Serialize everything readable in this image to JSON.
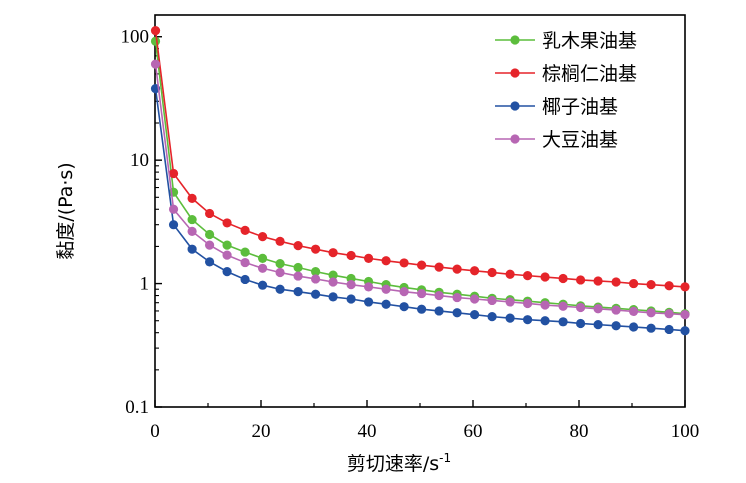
{
  "chart_data": {
    "type": "line",
    "xlabel": "剪切速率/s",
    "xlabel_sup": "-1",
    "ylabel": "黏度/(Pa·s)",
    "y_scale": "log",
    "xlim": [
      0,
      100
    ],
    "ylim": [
      0.1,
      150
    ],
    "x_ticks": [
      0,
      20,
      40,
      60,
      80,
      100
    ],
    "x_tick_labels": [
      "0",
      "20",
      "40",
      "60",
      "80",
      "100"
    ],
    "y_ticks": [
      0.1,
      1,
      10,
      100
    ],
    "y_tick_labels": [
      "0.1",
      "1",
      "10",
      "100"
    ],
    "grid": false,
    "legend_position": "top-right",
    "x": [
      0.1,
      3.5,
      7,
      10.3,
      13.6,
      17,
      20.3,
      23.6,
      27,
      30.3,
      33.6,
      37,
      40.3,
      43.6,
      47,
      50.3,
      53.6,
      57,
      60.3,
      63.6,
      67,
      70.3,
      73.6,
      77,
      80.3,
      83.6,
      87,
      90.3,
      93.6,
      97,
      100
    ],
    "series": [
      {
        "name": "乳木果油基",
        "color": "#5cbd3c",
        "values": [
          92,
          5.5,
          3.3,
          2.5,
          2.05,
          1.8,
          1.6,
          1.45,
          1.35,
          1.25,
          1.17,
          1.1,
          1.04,
          0.98,
          0.93,
          0.89,
          0.85,
          0.82,
          0.79,
          0.76,
          0.74,
          0.72,
          0.7,
          0.68,
          0.66,
          0.645,
          0.63,
          0.615,
          0.6,
          0.585,
          0.57
        ]
      },
      {
        "name": "棕榈仁油基",
        "color": "#e5242a",
        "values": [
          112,
          7.8,
          4.9,
          3.7,
          3.1,
          2.7,
          2.4,
          2.2,
          2.03,
          1.9,
          1.78,
          1.69,
          1.6,
          1.53,
          1.47,
          1.41,
          1.36,
          1.31,
          1.27,
          1.23,
          1.19,
          1.16,
          1.13,
          1.1,
          1.07,
          1.05,
          1.03,
          1.0,
          0.98,
          0.96,
          0.94
        ]
      },
      {
        "name": "椰子油基",
        "color": "#2251a2",
        "values": [
          38,
          3.0,
          1.9,
          1.5,
          1.25,
          1.08,
          0.97,
          0.9,
          0.86,
          0.82,
          0.78,
          0.75,
          0.71,
          0.68,
          0.65,
          0.62,
          0.6,
          0.58,
          0.56,
          0.54,
          0.525,
          0.51,
          0.5,
          0.49,
          0.475,
          0.465,
          0.455,
          0.445,
          0.435,
          0.425,
          0.415
        ]
      },
      {
        "name": "大豆油基",
        "color": "#b766b3",
        "values": [
          60,
          4.0,
          2.65,
          2.05,
          1.7,
          1.48,
          1.33,
          1.23,
          1.15,
          1.09,
          1.03,
          0.98,
          0.94,
          0.9,
          0.86,
          0.83,
          0.8,
          0.77,
          0.75,
          0.73,
          0.71,
          0.69,
          0.67,
          0.655,
          0.64,
          0.625,
          0.61,
          0.595,
          0.58,
          0.57,
          0.56
        ]
      }
    ]
  }
}
